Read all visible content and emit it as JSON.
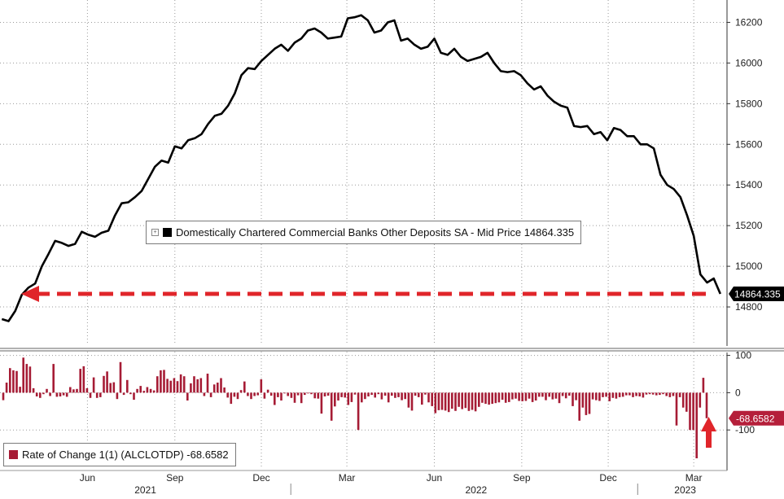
{
  "colors": {
    "line": "#000000",
    "bar": "#a61c35",
    "arrow": "#e0252a",
    "label_bg": "#000000",
    "roc_label_bg": "#b51f3a",
    "grid": "#9a9a9a"
  },
  "chart_data": [
    {
      "type": "line",
      "name": "Domestically Chartered Commercial Banks Other Deposits SA - Mid Price",
      "legend_label": "Domestically Chartered Commercial Banks Other Deposits SA - Mid Price 14864.335",
      "last_value_label": "14864.335",
      "last_value": 14864.335,
      "y_ticks": [
        "14800",
        "15000",
        "15200",
        "15400",
        "15600",
        "15800",
        "16000",
        "16200"
      ],
      "ylim": [
        14620,
        16310
      ],
      "x_period": [
        "2021-03-01",
        "2023-04-05"
      ],
      "series": [
        {
          "name": "Domestically Chartered Commercial Banks Other Deposits SA - Mid Price",
          "x": [
            "2021-03-03",
            "2021-03-10",
            "2021-03-17",
            "2021-03-24",
            "2021-03-31",
            "2021-04-07",
            "2021-04-14",
            "2021-04-21",
            "2021-04-28",
            "2021-05-05",
            "2021-05-12",
            "2021-05-19",
            "2021-05-26",
            "2021-06-02",
            "2021-06-09",
            "2021-06-16",
            "2021-06-23",
            "2021-06-30",
            "2021-07-07",
            "2021-07-14",
            "2021-07-21",
            "2021-07-28",
            "2021-08-04",
            "2021-08-11",
            "2021-08-18",
            "2021-08-25",
            "2021-09-01",
            "2021-09-08",
            "2021-09-15",
            "2021-09-22",
            "2021-09-29",
            "2021-10-06",
            "2021-10-13",
            "2021-10-20",
            "2021-10-27",
            "2021-11-03",
            "2021-11-10",
            "2021-11-17",
            "2021-11-24",
            "2021-12-01",
            "2021-12-08",
            "2021-12-15",
            "2021-12-22",
            "2021-12-29",
            "2022-01-05",
            "2022-01-12",
            "2022-01-19",
            "2022-01-26",
            "2022-02-02",
            "2022-02-09",
            "2022-02-16",
            "2022-02-23",
            "2022-03-02",
            "2022-03-09",
            "2022-03-16",
            "2022-03-23",
            "2022-03-30",
            "2022-04-06",
            "2022-04-13",
            "2022-04-20",
            "2022-04-27",
            "2022-05-04",
            "2022-05-11",
            "2022-05-18",
            "2022-05-25",
            "2022-06-01",
            "2022-06-08",
            "2022-06-15",
            "2022-06-22",
            "2022-06-29",
            "2022-07-06",
            "2022-07-13",
            "2022-07-20",
            "2022-07-27",
            "2022-08-03",
            "2022-08-10",
            "2022-08-17",
            "2022-08-24",
            "2022-08-31",
            "2022-09-07",
            "2022-09-14",
            "2022-09-21",
            "2022-09-28",
            "2022-10-05",
            "2022-10-12",
            "2022-10-19",
            "2022-10-26",
            "2022-11-02",
            "2022-11-09",
            "2022-11-16",
            "2022-11-23",
            "2022-11-30",
            "2022-12-07",
            "2022-12-14",
            "2022-12-21",
            "2022-12-28",
            "2023-01-04",
            "2023-01-11",
            "2023-01-18",
            "2023-01-25",
            "2023-02-01",
            "2023-02-08",
            "2023-02-15",
            "2023-02-22",
            "2023-03-01",
            "2023-03-08",
            "2023-03-15",
            "2023-03-22",
            "2023-03-29"
          ],
          "y": [
            14740,
            14730,
            14780,
            14860,
            14895,
            14915,
            15000,
            15060,
            15125,
            15115,
            15100,
            15110,
            15170,
            15155,
            15145,
            15165,
            15175,
            15250,
            15310,
            15315,
            15340,
            15370,
            15430,
            15490,
            15520,
            15510,
            15590,
            15580,
            15620,
            15630,
            15650,
            15700,
            15740,
            15750,
            15790,
            15850,
            15940,
            15975,
            15970,
            16010,
            16040,
            16070,
            16090,
            16060,
            16100,
            16120,
            16160,
            16170,
            16150,
            16120,
            16125,
            16130,
            16220,
            16225,
            16235,
            16210,
            16150,
            16160,
            16200,
            16210,
            16110,
            16120,
            16090,
            16070,
            16080,
            16120,
            16050,
            16040,
            16070,
            16030,
            16010,
            16020,
            16030,
            16050,
            16000,
            15960,
            15955,
            15960,
            15940,
            15900,
            15870,
            15885,
            15840,
            15810,
            15790,
            15780,
            15690,
            15685,
            15690,
            15650,
            15660,
            15620,
            15680,
            15670,
            15640,
            15640,
            15600,
            15600,
            15580,
            15450,
            15400,
            15380,
            15340,
            15250,
            15150,
            14960,
            14920,
            14940,
            14864.335
          ]
        }
      ]
    },
    {
      "type": "bar",
      "name": "Rate of Change 1(1) (ALCLOTDP)",
      "legend_label": "Rate of Change 1(1) (ALCLOTDP) -68.6582",
      "last_value_label": "-68.6582",
      "last_value": -68.6582,
      "y_ticks": [
        "100",
        "0",
        "-100"
      ],
      "ylim": [
        -200,
        110
      ],
      "series": [
        {
          "name": "Rate of Change 1(1) (ALCLOTDP)",
          "values": [
            -20,
            27,
            66,
            60,
            58,
            16,
            94,
            77,
            70,
            12,
            -10,
            -14,
            -4,
            10,
            -9,
            77,
            -11,
            -10,
            -7,
            -11,
            15,
            9,
            10,
            64,
            71,
            12,
            -14,
            41,
            -14,
            -12,
            45,
            57,
            26,
            28,
            -17,
            82,
            -6,
            34,
            -4,
            -19,
            10,
            18,
            5,
            15,
            10,
            6,
            44,
            60,
            61,
            37,
            32,
            39,
            31,
            49,
            44,
            -21,
            25,
            44,
            36,
            39,
            -9,
            51,
            -12,
            22,
            27,
            39,
            14,
            -13,
            -30,
            -11,
            -17,
            7,
            30,
            -9,
            -17,
            -9,
            -7,
            36,
            -16,
            8,
            -8,
            -33,
            -12,
            -21,
            -2,
            -9,
            -14,
            -27,
            -7,
            -28,
            -6,
            -2,
            -4,
            -15,
            -16,
            -56,
            -10,
            -8,
            -75,
            -37,
            -21,
            -12,
            -13,
            -33,
            -25,
            -5,
            -100,
            -26,
            -17,
            -10,
            -6,
            -13,
            -4,
            -18,
            -8,
            -26,
            -8,
            -14,
            -12,
            -20,
            -17,
            -40,
            -48,
            -8,
            -12,
            -32,
            -5,
            -26,
            -36,
            -55,
            -47,
            -46,
            -48,
            -52,
            -43,
            -49,
            -38,
            -44,
            -41,
            -49,
            -46,
            -50,
            -38,
            -27,
            -30,
            -32,
            -30,
            -28,
            -26,
            -19,
            -27,
            -25,
            -18,
            -16,
            -22,
            -23,
            -22,
            -16,
            -25,
            -21,
            -11,
            -11,
            -20,
            -11,
            -18,
            -16,
            -28,
            -9,
            -15,
            -8,
            -36,
            -20,
            -75,
            -40,
            -60,
            -57,
            -18,
            -20,
            -22,
            -12,
            -11,
            -23,
            -14,
            -16,
            -12,
            -11,
            -7,
            -7,
            -12,
            -9,
            -10,
            -13,
            -5,
            -4,
            -5,
            -7,
            -6,
            -4,
            -9,
            -12,
            -9,
            -88,
            -12,
            -40,
            -51,
            -100,
            -100,
            -176,
            -40,
            40,
            -68.6582
          ]
        }
      ]
    }
  ],
  "x_axis": {
    "month_labels": [
      "Jun",
      "Sep",
      "Dec",
      "Mar",
      "Jun",
      "Sep",
      "Dec",
      "Mar"
    ],
    "year_labels": [
      "2021",
      "2022",
      "2023"
    ]
  }
}
